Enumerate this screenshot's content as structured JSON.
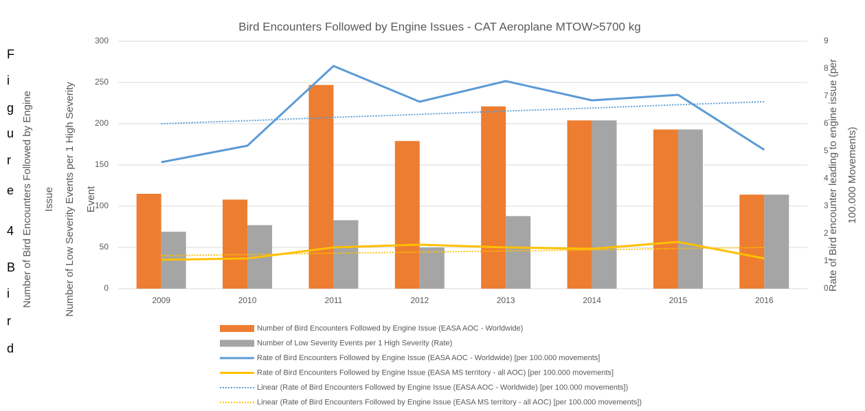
{
  "side_text": [
    "F",
    "i",
    "g",
    "u",
    "r",
    "e",
    "4",
    "B",
    "i",
    "r",
    "d"
  ],
  "chart_data": {
    "type": "bar_line",
    "title": "Bird Encounters Followed by Engine Issues - CAT Aeroplane MTOW>5700 kg",
    "ylabel": [
      "Number of Bird Encounters Followed by Engine",
      "Issue",
      "Number of Low Severity Events per 1 High Severity",
      "Event"
    ],
    "y2label": [
      "Rate of Bird encounter leading to engine issue (per",
      "100.000 Movements)"
    ],
    "categories": [
      "2009",
      "2010",
      "2011",
      "2012",
      "2013",
      "2014",
      "2015",
      "2016"
    ],
    "ylim": [
      0,
      300
    ],
    "yticks": [
      0,
      50,
      100,
      150,
      200,
      250,
      300
    ],
    "y2lim": [
      0,
      9
    ],
    "y2ticks": [
      0,
      1,
      2,
      3,
      4,
      5,
      6,
      7,
      8,
      9
    ],
    "grid": true,
    "series": [
      {
        "name": "Number of Bird Encounters Followed by Engine Issue (EASA AOC - Worldwide)",
        "kind": "bar",
        "color": "#ed7d31",
        "values": [
          115,
          108,
          247,
          179,
          221,
          204,
          193,
          114
        ]
      },
      {
        "name": "Number of Low Severity Events per 1 High Severity (Rate)",
        "kind": "bar",
        "color": "#a5a5a5",
        "values": [
          69,
          77,
          83,
          50,
          88,
          204,
          193,
          114
        ]
      },
      {
        "name": "Rate of Bird Encounters Followed by Engine Issue (EASA AOC - Worldwide) [per 100.000 movements]",
        "kind": "line",
        "axis": "y2",
        "color": "#5b9bd5",
        "values": [
          4.6,
          5.2,
          8.1,
          6.8,
          7.55,
          6.85,
          7.05,
          5.05
        ]
      },
      {
        "name": "Rate of Bird Encounters Followed by Engine Issue (EASA MS territory - all AOC) [per 100.000 movements]",
        "kind": "line",
        "axis": "y2",
        "color": "#ffc000",
        "values": [
          1.05,
          1.1,
          1.5,
          1.6,
          1.5,
          1.45,
          1.7,
          1.1
        ]
      },
      {
        "name": "Linear (Rate of Bird Encounters Followed by Engine Issue (EASA AOC - Worldwide) [per 100.000 movements])",
        "kind": "dotted",
        "axis": "y2",
        "color": "#5b9bd5",
        "values": [
          6.0,
          6.11,
          6.23,
          6.34,
          6.46,
          6.57,
          6.69,
          6.8
        ]
      },
      {
        "name": "Linear (Rate of Bird Encounters Followed by Engine Issue (EASA MS territory - all AOC) [per 100.000 movements])",
        "kind": "dotted",
        "axis": "y2",
        "color": "#ffc000",
        "values": [
          1.2,
          1.24,
          1.29,
          1.33,
          1.37,
          1.41,
          1.46,
          1.5
        ]
      }
    ]
  }
}
